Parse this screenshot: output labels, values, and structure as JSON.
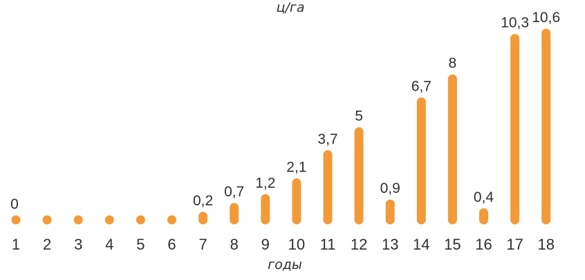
{
  "chart_data": {
    "type": "bar",
    "unit_label": "ц/га",
    "xlabel": "годы",
    "categories": [
      "1",
      "2",
      "3",
      "4",
      "5",
      "6",
      "7",
      "8",
      "9",
      "10",
      "11",
      "12",
      "13",
      "14",
      "15",
      "16",
      "17",
      "18"
    ],
    "values": [
      0,
      0,
      0,
      0,
      0,
      0,
      0.2,
      0.7,
      1.2,
      2.1,
      3.7,
      5,
      0.9,
      6.7,
      8,
      0.4,
      10.3,
      10.6
    ],
    "data_labels": [
      "0",
      "",
      "",
      "",
      "",
      "",
      "0,2",
      "0,7",
      "1,2",
      "2,1",
      "3,7",
      "5",
      "0,9",
      "6,7",
      "8",
      "0,4",
      "10,3",
      "10,6"
    ],
    "ylim": [
      0,
      10.6
    ],
    "grid": false,
    "legend": "none",
    "bar_color": "#F29A38"
  }
}
